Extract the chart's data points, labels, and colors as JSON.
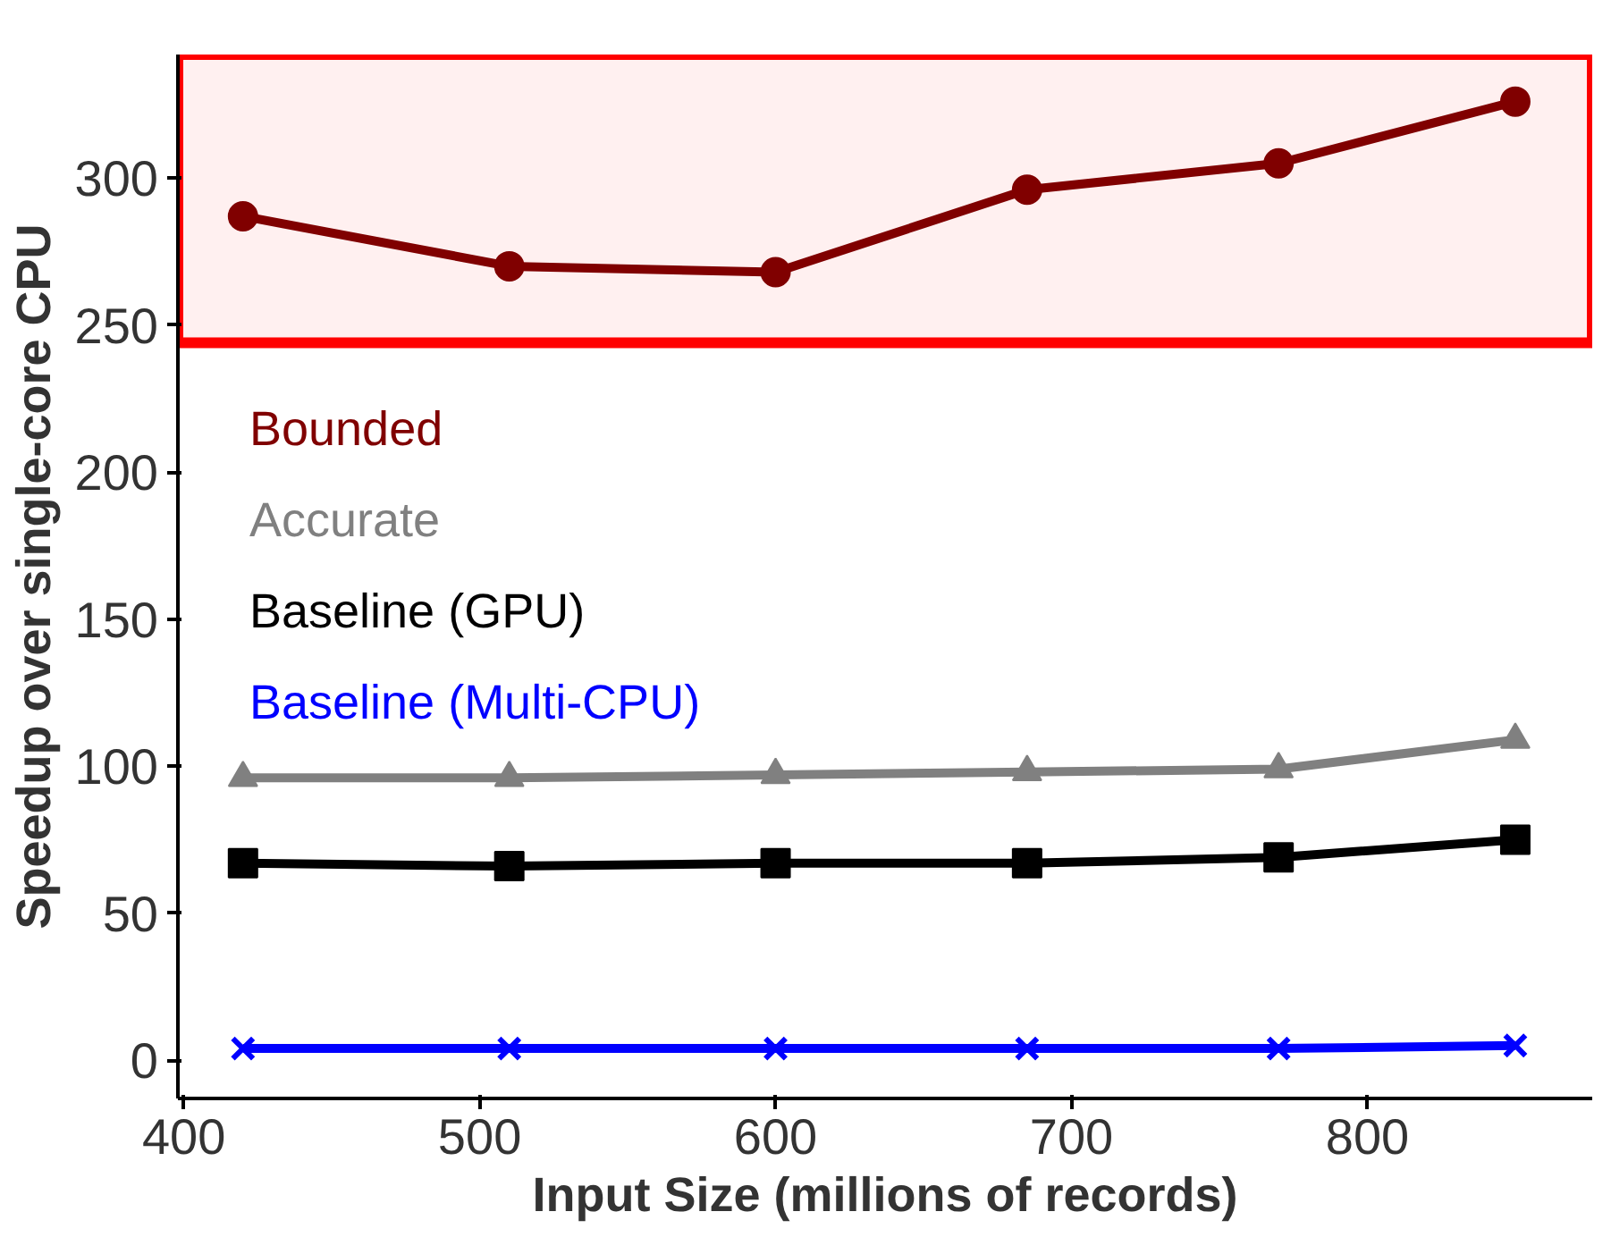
{
  "chart_data": {
    "type": "line",
    "xlabel": "Input Size (millions of records)",
    "ylabel": "Speedup over single-core CPU",
    "x": [
      420,
      510,
      600,
      685,
      770,
      850
    ],
    "series": [
      {
        "name": "Bounded",
        "color": "#800000",
        "marker": "circle",
        "values": [
          287,
          270,
          268,
          296,
          305,
          326
        ]
      },
      {
        "name": "Accurate",
        "color": "#808080",
        "marker": "triangle",
        "values": [
          96,
          96,
          97,
          98,
          99,
          109
        ]
      },
      {
        "name": "Baseline (GPU)",
        "color": "#000000",
        "marker": "square",
        "values": [
          67,
          66,
          67,
          67,
          69,
          75
        ]
      },
      {
        "name": "Baseline (Multi-CPU)",
        "color": "#0000ff",
        "marker": "cross",
        "values": [
          4,
          4,
          4,
          4,
          4,
          5
        ]
      }
    ],
    "xlim": [
      398,
      876
    ],
    "ylim": [
      -13,
      342
    ],
    "xticks": [
      400,
      500,
      600,
      700,
      800
    ],
    "yticks": [
      0,
      50,
      100,
      150,
      200,
      250,
      300
    ],
    "bands": [
      {
        "axis": "y",
        "from": 244,
        "to": 342,
        "color": "#ff0000"
      }
    ],
    "grid": false,
    "legend": "left",
    "line_style": "solid"
  }
}
